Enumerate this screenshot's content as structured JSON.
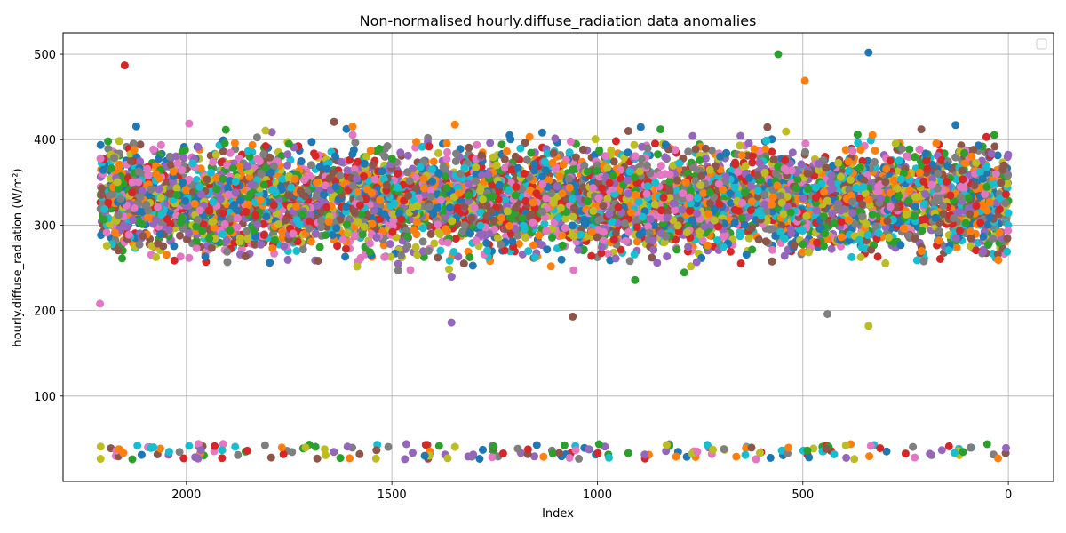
{
  "chart_data": {
    "type": "scatter",
    "title": "Non-normalised hourly.diffuse_radiation data anomalies",
    "xlabel": "Index",
    "ylabel": "hourly.diffuse_radiation (W/m²)",
    "xlim": [
      2300,
      -110
    ],
    "ylim": [
      0,
      525
    ],
    "x_inverted": true,
    "xticks": [
      2000,
      1500,
      1000,
      500,
      0
    ],
    "xtick_labels": [
      "2000",
      "1500",
      "1000",
      "500",
      "0"
    ],
    "yticks": [
      100,
      200,
      300,
      400,
      500
    ],
    "ytick_labels": [
      "100",
      "200",
      "300",
      "400",
      "500"
    ],
    "grid": true,
    "legend": "top-right (empty)",
    "index_range": [
      0,
      2210
    ],
    "main_band": {
      "center": 330,
      "spread": 55,
      "min": 180,
      "max": 502
    },
    "anomaly_band": {
      "min": 26,
      "max": 44
    },
    "series_colors": [
      "#1f77b4",
      "#ff7f0e",
      "#2ca02c",
      "#d62728",
      "#9467bd",
      "#8c564b",
      "#e377c2",
      "#7f7f7f",
      "#bcbd22",
      "#17becf"
    ],
    "notable_points": [
      {
        "x": 340,
        "y": 502
      },
      {
        "x": 495,
        "y": 469
      },
      {
        "x": 560,
        "y": 500
      },
      {
        "x": 2150,
        "y": 487
      },
      {
        "x": 1355,
        "y": 186
      },
      {
        "x": 1060,
        "y": 193
      },
      {
        "x": 2210,
        "y": 208
      },
      {
        "x": 440,
        "y": 196
      },
      {
        "x": 340,
        "y": 182
      },
      {
        "x": 2080,
        "y": 40
      },
      {
        "x": 1420,
        "y": 30
      },
      {
        "x": 25,
        "y": 27
      }
    ]
  }
}
